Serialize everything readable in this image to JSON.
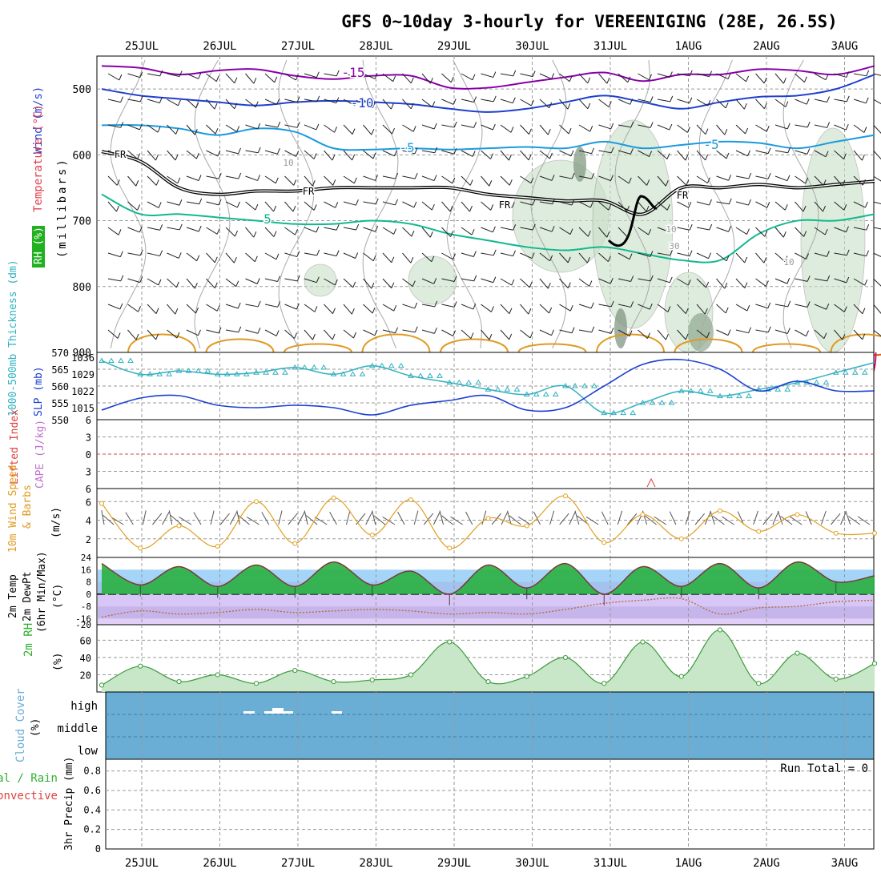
{
  "title": "GFS 0~10day 3-hourly for VEREENIGING (28E, 26.5S)",
  "dates": [
    "25JUL",
    "26JUL",
    "27JUL",
    "28JUL",
    "29JUL",
    "30JUL",
    "31JUL",
    "1AUG",
    "2AUG",
    "3AUG"
  ],
  "colors": {
    "temp_m15": "#8800aa",
    "temp_m10": "#1f3fd0",
    "temp_m5": "#1a9adf",
    "temp_p5": "#12b890",
    "temp_p10": "#e09a20",
    "temp_p15": "#d06010",
    "temp_p20": "#e01070",
    "freezing": "#000000",
    "rh_fill": "#c8e0c8",
    "thickness": "#30b0c0",
    "slp": "#1a3fd0",
    "wind10": "#e0a020",
    "temp2m": "#7a3a3a",
    "dewpt": "#b07040",
    "rh2m": "#30b030",
    "cloud": "#6aaed6",
    "lifted_zero": "#e04040"
  },
  "panels": {
    "upper": {
      "axis_wind": "Wind (m/s)",
      "axis_temp": "Temperature (°C)",
      "axis_rh": "RH (%)",
      "axis_unit": "(millibars)",
      "ticks": [
        "500",
        "600",
        "700",
        "800",
        "900"
      ],
      "contour_labels": [
        "-15",
        "-10",
        "-5",
        "-5",
        "5",
        "FR",
        "FR",
        "FR",
        "FR",
        "10",
        "10",
        "30",
        "10"
      ]
    },
    "thickness": {
      "axis_left": "1000-500mb Thickness (dm)",
      "axis_right": "SLP (mb)",
      "ticks_left": [
        "570",
        "565",
        "560",
        "555",
        "550"
      ],
      "ticks_right": [
        "1036",
        "1029",
        "1022",
        "1015"
      ]
    },
    "lifted": {
      "axis_left": "Lifted Index",
      "axis_right": "CAPE (J/kg)",
      "ticks": [
        "6",
        "3",
        "0",
        "3",
        "6"
      ]
    },
    "wind10": {
      "axis_left": "10m Wind Speed",
      "axis_right": "& Barbs",
      "axis_unit": "(m/s)",
      "ticks": [
        "6",
        "4",
        "2"
      ]
    },
    "temp2m": {
      "axis_1": "2m Temp",
      "axis_2": "2m DewPt",
      "axis_3": "(6hr Min/Max)",
      "axis_unit": "(°C)",
      "ticks": [
        "24",
        "16",
        "8",
        "0",
        "-8",
        "-16",
        "-20"
      ]
    },
    "rh2m": {
      "axis_left": "2m RH",
      "axis_unit": "(%)",
      "ticks": [
        "60",
        "40",
        "20"
      ]
    },
    "cloud": {
      "axis_left": "Cloud Cover",
      "axis_unit": "(%)",
      "levels": [
        "high",
        "middle",
        "low"
      ]
    },
    "precip": {
      "axis_1": "Total / Rain",
      "axis_2": "Convective",
      "axis_3": "3hr Precip (mm)",
      "ticks": [
        "0.8",
        "0.6",
        "0.4",
        "0.2",
        "0"
      ],
      "run_total": "Run Total = 0"
    }
  },
  "chart_data": [
    {
      "type": "line",
      "title": "",
      "name": "Upper-air temperature contours (°C)",
      "x": [
        "24JUL12",
        "25JUL00",
        "25JUL12",
        "26JUL00",
        "26JUL12",
        "27JUL00",
        "27JUL12",
        "28JUL00",
        "28JUL12",
        "29JUL00",
        "29JUL12",
        "30JUL00",
        "30JUL12",
        "31JUL00",
        "31JUL12",
        "1AUG00",
        "1AUG12",
        "2AUG00",
        "2AUG12",
        "3AUG00",
        "3AUG09"
      ],
      "series": [
        {
          "name": "-15",
          "values": [
            465,
            468,
            478,
            472,
            470,
            480,
            485,
            480,
            480,
            498,
            498,
            490,
            482,
            475,
            488,
            478,
            478,
            470,
            472,
            478,
            465
          ]
        },
        {
          "name": "-10",
          "values": [
            500,
            510,
            515,
            520,
            525,
            520,
            518,
            520,
            523,
            530,
            535,
            530,
            520,
            510,
            520,
            530,
            520,
            512,
            510,
            500,
            478
          ]
        },
        {
          "name": "-5",
          "values": [
            555,
            555,
            560,
            570,
            560,
            565,
            590,
            592,
            590,
            592,
            590,
            588,
            590,
            580,
            590,
            585,
            580,
            582,
            590,
            580,
            570
          ]
        },
        {
          "name": "FR",
          "values": [
            595,
            610,
            650,
            660,
            655,
            655,
            650,
            650,
            650,
            650,
            660,
            665,
            670,
            670,
            690,
            650,
            650,
            645,
            650,
            645,
            640
          ]
        },
        {
          "name": "5",
          "values": [
            660,
            690,
            690,
            695,
            700,
            705,
            705,
            700,
            705,
            720,
            730,
            740,
            745,
            740,
            750,
            760,
            760,
            720,
            700,
            700,
            690
          ]
        }
      ],
      "ylabel": "(millibars)",
      "ylim": [
        900,
        450
      ]
    },
    {
      "type": "line",
      "title": "",
      "x": [
        "24JUL12",
        "25JUL00",
        "25JUL12",
        "26JUL00",
        "26JUL12",
        "27JUL00",
        "27JUL12",
        "28JUL00",
        "28JUL12",
        "29JUL00",
        "29JUL12",
        "30JUL00",
        "30JUL12",
        "31JUL00",
        "31JUL12",
        "1AUG00",
        "1AUG12",
        "2AUG00",
        "2AUG12",
        "3AUG00",
        "3AUG09"
      ],
      "series": [
        {
          "name": "1000-500mb Thickness",
          "values": [
            567.5,
            563.5,
            564.5,
            563.5,
            564,
            565.5,
            563.5,
            566,
            563,
            561,
            559,
            557.5,
            560,
            552,
            555,
            558.5,
            557,
            559,
            561,
            564,
            567
          ]
        },
        {
          "name": "SLP",
          "values": [
            1014,
            1019,
            1020,
            1016,
            1015,
            1016,
            1015,
            1012,
            1016,
            1018,
            1020,
            1014,
            1015,
            1024,
            1033,
            1035,
            1031,
            1022,
            1026,
            1022,
            1022
          ]
        }
      ],
      "ylim": [
        550,
        570
      ]
    },
    {
      "type": "line",
      "title": "",
      "x": [
        "24JUL12",
        "3AUG09"
      ],
      "series": [
        {
          "name": "Lifted Index",
          "values": [
            6,
            6
          ]
        }
      ],
      "ylim": [
        6,
        -6
      ]
    },
    {
      "type": "line",
      "title": "",
      "x": [
        "24JUL12",
        "25JUL00",
        "25JUL12",
        "26JUL00",
        "26JUL12",
        "27JUL00",
        "27JUL12",
        "28JUL00",
        "28JUL12",
        "29JUL00",
        "29JUL12",
        "30JUL00",
        "30JUL12",
        "31JUL00",
        "31JUL12",
        "1AUG00",
        "1AUG12",
        "2AUG00",
        "2AUG12",
        "3AUG00",
        "3AUG09"
      ],
      "series": [
        {
          "name": "10m Wind Speed",
          "values": [
            5.8,
            1,
            3.4,
            1.2,
            6,
            1.5,
            6.4,
            2.4,
            6.2,
            1,
            4.2,
            3.4,
            6.6,
            1.6,
            4.6,
            2,
            5,
            2.8,
            4.6,
            2.6,
            2.6
          ]
        }
      ],
      "ylim": [
        0,
        7
      ]
    },
    {
      "type": "area",
      "title": "",
      "x": [
        "24JUL12",
        "25JUL00",
        "25JUL12",
        "26JUL00",
        "26JUL12",
        "27JUL00",
        "27JUL12",
        "28JUL00",
        "28JUL12",
        "29JUL00",
        "29JUL12",
        "30JUL00",
        "30JUL12",
        "31JUL00",
        "31JUL12",
        "1AUG00",
        "1AUG12",
        "2AUG00",
        "2AUG12",
        "3AUG00",
        "3AUG09"
      ],
      "series": [
        {
          "name": "2m Temp",
          "values": [
            20,
            6,
            18,
            5,
            19,
            5,
            21,
            6,
            15,
            0,
            19,
            4,
            20,
            0,
            18,
            5,
            20,
            4,
            21,
            8,
            12
          ]
        },
        {
          "name": "2m DewPt",
          "values": [
            -15,
            -11,
            -13,
            -12,
            -10,
            -12,
            -11,
            -10,
            -11,
            -13,
            -12,
            -13,
            -10,
            -6,
            -4,
            -3,
            -13,
            -9,
            -8,
            -5,
            -4
          ]
        }
      ],
      "ylim": [
        -20,
        24
      ]
    },
    {
      "type": "area",
      "title": "",
      "x": [
        "24JUL12",
        "25JUL00",
        "25JUL12",
        "26JUL00",
        "26JUL12",
        "27JUL00",
        "27JUL12",
        "28JUL00",
        "28JUL12",
        "29JUL00",
        "29JUL12",
        "30JUL00",
        "30JUL12",
        "31JUL00",
        "31JUL12",
        "1AUG00",
        "1AUG12",
        "2AUG00",
        "2AUG12",
        "3AUG00",
        "3AUG09"
      ],
      "series": [
        {
          "name": "2m RH",
          "values": [
            8,
            30,
            12,
            20,
            10,
            25,
            12,
            14,
            20,
            58,
            12,
            18,
            40,
            10,
            58,
            18,
            72,
            10,
            45,
            15,
            33
          ]
        }
      ],
      "ylim": [
        0,
        75
      ]
    },
    {
      "type": "heatmap",
      "title": "",
      "name": "Cloud Cover",
      "categories": [
        "high",
        "middle",
        "low"
      ],
      "values": [
        [
          0,
          0,
          0,
          1,
          1,
          0,
          1,
          0,
          0,
          0,
          0,
          0,
          0,
          0,
          0,
          0,
          0,
          0,
          0,
          0,
          0
        ],
        [
          0,
          0,
          0,
          0,
          0,
          0,
          0,
          0,
          0,
          0,
          0,
          0,
          0,
          0,
          0,
          0,
          0,
          0,
          0,
          0,
          0
        ],
        [
          0,
          0,
          0,
          0,
          0,
          0,
          0,
          0,
          0,
          0,
          0,
          0,
          0,
          0,
          0,
          0,
          0,
          0,
          0,
          0,
          0
        ]
      ]
    },
    {
      "type": "bar",
      "title": "",
      "x": [
        "24JUL12",
        "3AUG09"
      ],
      "series": [
        {
          "name": "3hr Precip",
          "values": [
            0,
            0
          ]
        }
      ],
      "ylim": [
        0,
        0.9
      ]
    }
  ]
}
